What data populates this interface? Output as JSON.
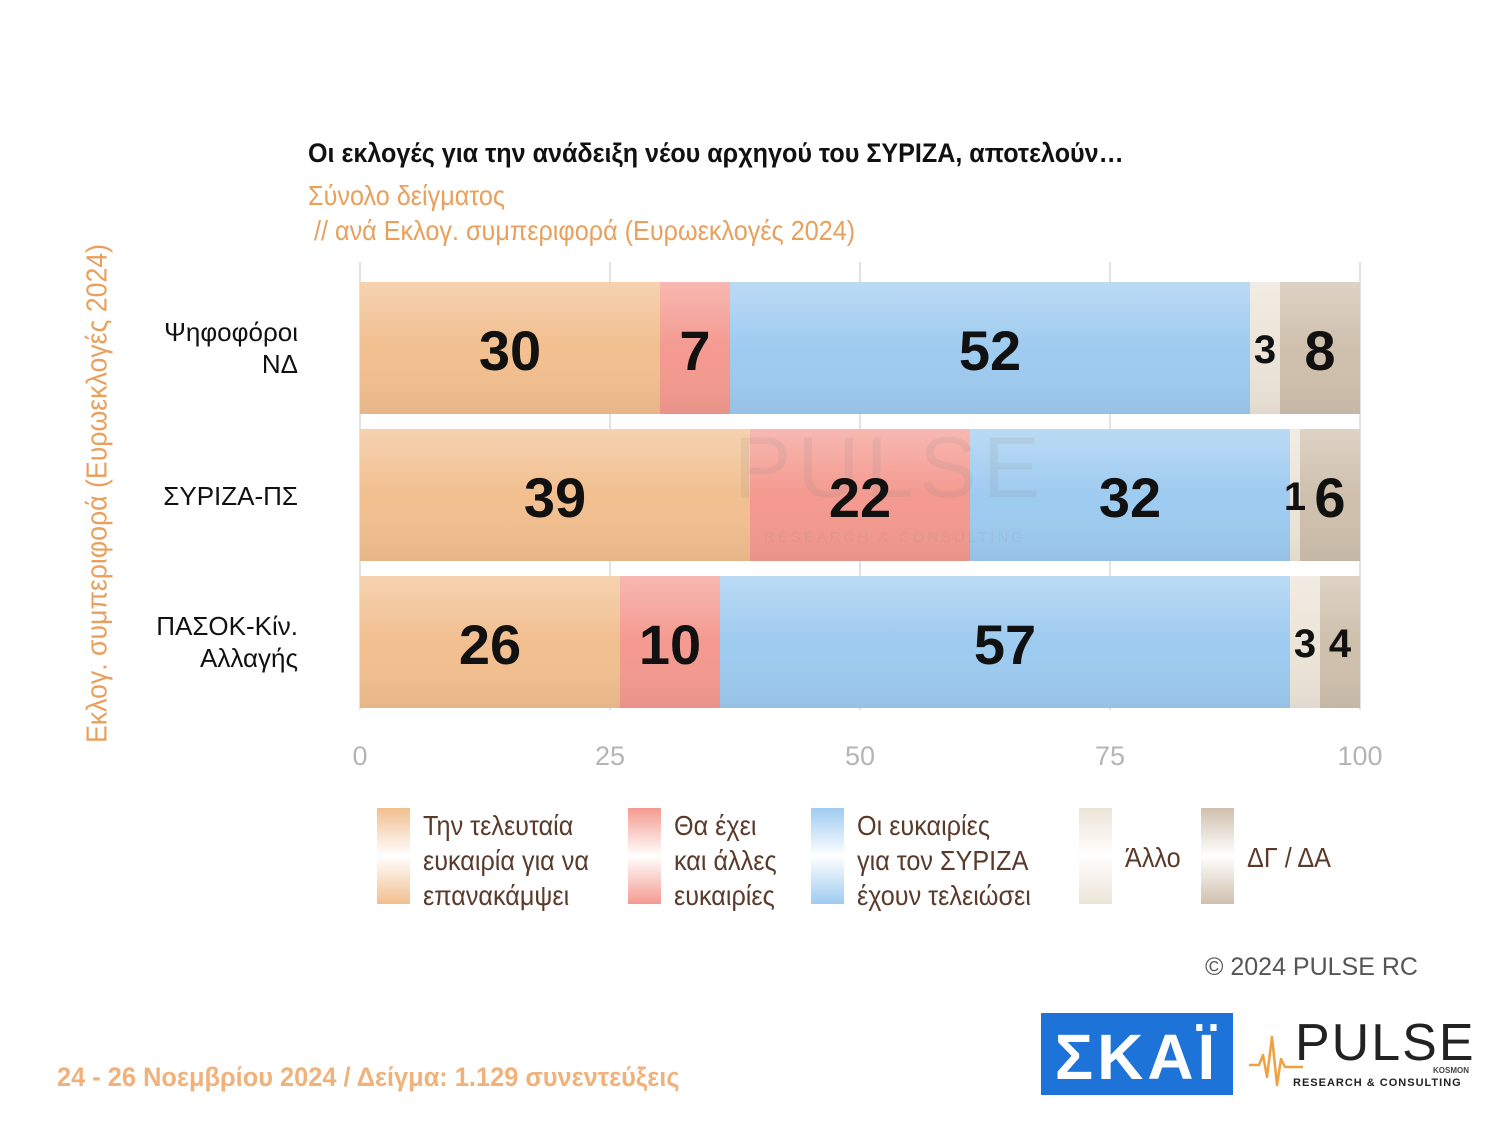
{
  "chart_data": {
    "type": "bar",
    "orientation": "horizontal",
    "stacked": true,
    "title": "Οι εκλογές για την ανάδειξη νέου αρχηγού του ΣΥΡΙΖΑ, αποτελούν…",
    "subtitle_line1": "Σύνολο δείγματος",
    "subtitle_line2": "// ανά Εκλογ. συμπεριφορά (Ευρωεκλογές 2024)",
    "ylabel": "Εκλογ. συμπεριφορά (Ευρωεκλογές 2024)",
    "categories": [
      {
        "line1": "Ψηφοφόροι",
        "line2": "ΝΔ"
      },
      {
        "line1": "ΣΥΡΙΖΑ-ΠΣ",
        "line2": ""
      },
      {
        "line1": "ΠΑΣΟΚ-Κίν.",
        "line2": "Αλλαγής"
      }
    ],
    "series": [
      {
        "name": "Την τελευταία\nευκαιρία για να\nεπανακάμψει",
        "color": "#f2bf8f",
        "values": [
          30,
          39,
          26
        ]
      },
      {
        "name": "Θα έχει\nκαι άλλες\nευκαιρίες",
        "color": "#f49a90",
        "values": [
          7,
          22,
          10
        ]
      },
      {
        "name": "Οι ευκαιρίες\nγια τον ΣΥΡΙΖΑ\nέχουν τελειώσει",
        "color": "#9ecbf0",
        "values": [
          52,
          32,
          57
        ]
      },
      {
        "name": "Άλλο",
        "color": "#ece4d8",
        "values": [
          3,
          1,
          3
        ]
      },
      {
        "name": "ΔΓ / ΔΑ",
        "color": "#cfc0ad",
        "values": [
          8,
          6,
          4
        ]
      }
    ],
    "xlim": [
      0,
      100
    ],
    "xticks": [
      "0",
      "25",
      "50",
      "75",
      "100"
    ],
    "grid": true,
    "legend_position": "bottom"
  },
  "footer": {
    "copyright": "© 2024 PULSE RC",
    "sample": "24 - 26 Νοεμβρίου 2024  /  Δείγμα:  1.129 συνεντεύξεις"
  },
  "logos": {
    "skai": "ΣΚΑΪ",
    "pulse": "PULSE",
    "pulse_sub": "RESEARCH & CONSULTING",
    "pulse_kosmon": "KOSMON",
    "skai_color": "#1e73d8"
  }
}
